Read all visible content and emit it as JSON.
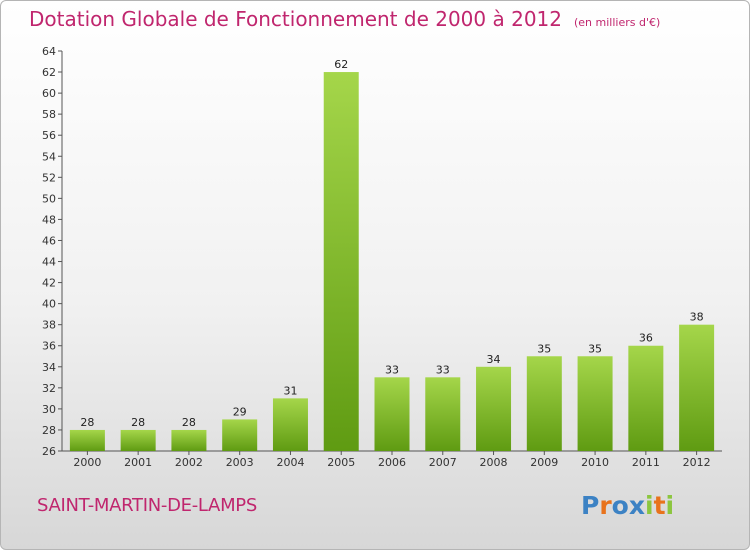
{
  "header": {
    "title": "Dotation Globale de Fonctionnement de 2000 à 2012",
    "unit": "(en milliers d'€)"
  },
  "footer": {
    "commune": "SAINT-MARTIN-DE-LAMPS",
    "logo": "Proxiti"
  },
  "colors": {
    "title": "#c0266e",
    "bar_light": "#a5d64a",
    "bar_dark": "#5f9b12",
    "logo": [
      "#3c82c4",
      "#e8731c",
      "#3c82c4",
      "#3c82c4",
      "#8cc63f",
      "#e8731c",
      "#8cc63f"
    ]
  },
  "chart_data": {
    "type": "bar",
    "title": "Dotation Globale de Fonctionnement de 2000 à 2012",
    "categories": [
      "2000",
      "2001",
      "2002",
      "2003",
      "2004",
      "2005",
      "2006",
      "2007",
      "2008",
      "2009",
      "2010",
      "2011",
      "2012"
    ],
    "values": [
      28,
      28,
      28,
      29,
      31,
      62,
      33,
      33,
      34,
      35,
      35,
      36,
      38
    ],
    "ylim": [
      26,
      64
    ],
    "yticks": [
      26,
      28,
      30,
      32,
      34,
      36,
      38,
      40,
      42,
      44,
      46,
      48,
      50,
      52,
      54,
      56,
      58,
      60,
      62,
      64
    ],
    "grid": false,
    "legend": "none"
  }
}
